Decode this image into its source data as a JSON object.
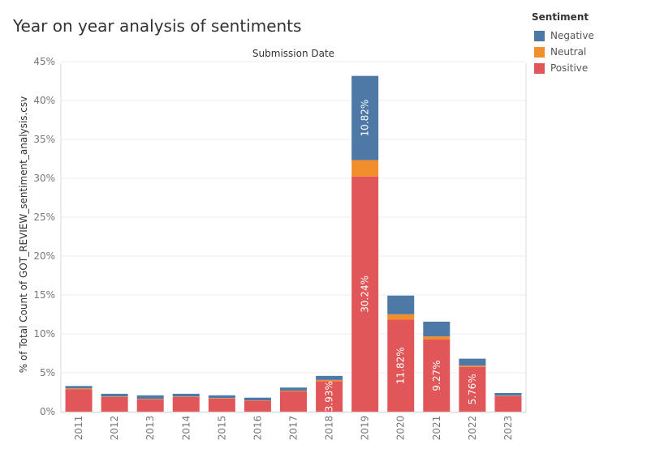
{
  "title": "Year on year analysis of sentiments",
  "legend": {
    "title": "Sentiment",
    "items": [
      {
        "label": "Negative",
        "color": "#4e79a7"
      },
      {
        "label": "Neutral",
        "color": "#f28e2b"
      },
      {
        "label": "Positive",
        "color": "#e15759"
      }
    ]
  },
  "chart_data": {
    "type": "bar",
    "stacked": true,
    "title": "Year on year analysis of sentiments",
    "header": "Submission Date",
    "ylabel": "% of Total Count of GOT_REVIEW_sentiment_analysis.csv",
    "xlabel": "",
    "ylim": [
      0,
      45
    ],
    "yticks": [
      "0%",
      "5%",
      "10%",
      "15%",
      "20%",
      "25%",
      "30%",
      "35%",
      "40%",
      "45%"
    ],
    "categories": [
      "2011",
      "2012",
      "2013",
      "2014",
      "2015",
      "2016",
      "2017",
      "2018",
      "2019",
      "2020",
      "2021",
      "2022",
      "2023"
    ],
    "series": [
      {
        "name": "Positive",
        "color": "#e15759",
        "values": [
          2.9,
          1.9,
          1.6,
          1.9,
          1.7,
          1.4,
          2.6,
          3.93,
          30.24,
          11.82,
          9.27,
          5.76,
          2.0
        ]
      },
      {
        "name": "Neutral",
        "color": "#f28e2b",
        "values": [
          0.1,
          0.05,
          0.05,
          0.05,
          0.05,
          0.05,
          0.1,
          0.15,
          2.1,
          0.7,
          0.4,
          0.15,
          0.05
        ]
      },
      {
        "name": "Negative",
        "color": "#4e79a7",
        "values": [
          0.3,
          0.35,
          0.45,
          0.35,
          0.35,
          0.35,
          0.4,
          0.52,
          10.82,
          2.4,
          1.9,
          0.9,
          0.35
        ]
      }
    ],
    "data_labels": [
      {
        "category": "2018",
        "series": "Positive",
        "text": "3.93%"
      },
      {
        "category": "2019",
        "series": "Positive",
        "text": "30.24%"
      },
      {
        "category": "2019",
        "series": "Negative",
        "text": "10.82%"
      },
      {
        "category": "2020",
        "series": "Positive",
        "text": "11.82%"
      },
      {
        "category": "2021",
        "series": "Positive",
        "text": "9.27%"
      },
      {
        "category": "2022",
        "series": "Positive",
        "text": "5.76%"
      }
    ],
    "grid": true,
    "legend_position": "top-right"
  }
}
